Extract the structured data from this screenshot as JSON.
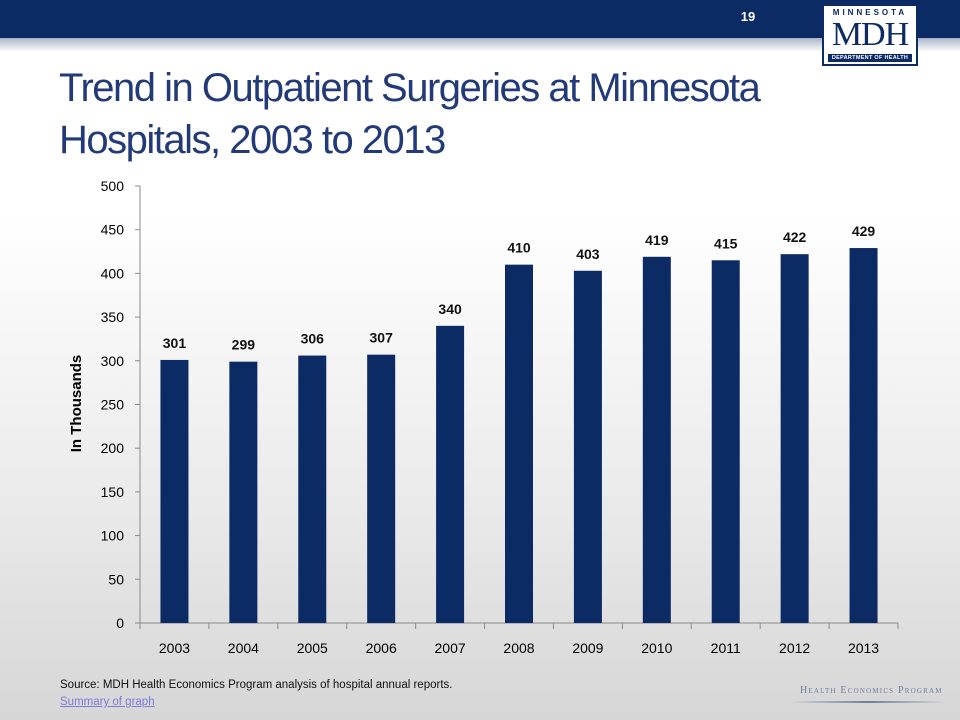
{
  "header": {
    "slide_number": "19",
    "logo": {
      "top_text": "MINNESOTA",
      "main_text": "MDH",
      "bottom_text": "DEPARTMENT OF HEALTH"
    }
  },
  "title": "Trend in Outpatient Surgeries at Minnesota Hospitals, 2003 to 2013",
  "footer": {
    "source": "Source: MDH Health Economics Program analysis of hospital annual reports.",
    "summary_link": "Summary of graph",
    "program_logo": "Health Economics Program"
  },
  "colors": {
    "bar": "#0c2a63",
    "header": "#0c2a63",
    "title": "#223a78"
  },
  "chart_data": {
    "type": "bar",
    "title": "",
    "xlabel": "",
    "ylabel": "In Thousands",
    "categories": [
      "2003",
      "2004",
      "2005",
      "2006",
      "2007",
      "2008",
      "2009",
      "2010",
      "2011",
      "2012",
      "2013"
    ],
    "values": [
      301,
      299,
      306,
      307,
      340,
      410,
      403,
      419,
      415,
      422,
      429
    ],
    "data_labels": [
      "301",
      "299",
      "306",
      "307",
      "340",
      "410",
      "403",
      "419",
      "415",
      "422",
      "429"
    ],
    "ylim": [
      0,
      500
    ],
    "yticks": [
      0,
      50,
      100,
      150,
      200,
      250,
      300,
      350,
      400,
      450,
      500
    ],
    "grid": false,
    "legend": "none"
  }
}
